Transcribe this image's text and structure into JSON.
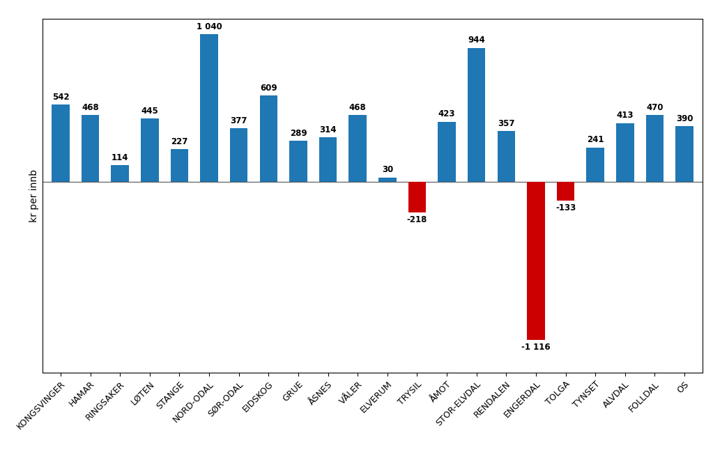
{
  "chart_data": {
    "type": "bar",
    "categories": [
      "KONGSVINGER",
      "HAMAR",
      "RINGSAKER",
      "LØTEN",
      "STANGE",
      "NORD-ODAL",
      "SØR-ODAL",
      "EIDSKOG",
      "GRUE",
      "ÅSNES",
      "VÅLER",
      "ELVERUM",
      "TRYSIL",
      "ÅMOT",
      "STOR-ELVDAL",
      "RENDALEN",
      "ENGERDAL",
      "TOLGA",
      "TYNSET",
      "ALVDAL",
      "FOLLDAL",
      "OS"
    ],
    "values": [
      542,
      468,
      114,
      445,
      227,
      1040,
      377,
      609,
      289,
      314,
      468,
      30,
      -218,
      423,
      944,
      357,
      -1116,
      -133,
      241,
      413,
      470,
      390
    ],
    "value_labels": [
      "542",
      "468",
      "114",
      "445",
      "227",
      "1 040",
      "377",
      "609",
      "289",
      "314",
      "468",
      "30",
      "-218",
      "423",
      "944",
      "357",
      "-1 116",
      "-133",
      "241",
      "413",
      "470",
      "390"
    ],
    "colors": [
      "#1f77b4",
      "#1f77b4",
      "#1f77b4",
      "#1f77b4",
      "#1f77b4",
      "#1f77b4",
      "#1f77b4",
      "#1f77b4",
      "#1f77b4",
      "#1f77b4",
      "#1f77b4",
      "#1f77b4",
      "#cc0000",
      "#1f77b4",
      "#1f77b4",
      "#1f77b4",
      "#cc0000",
      "#cc0000",
      "#1f77b4",
      "#1f77b4",
      "#1f77b4",
      "#1f77b4"
    ],
    "ylabel": "kr per innb",
    "ylim": [
      -1350,
      1150
    ],
    "data_labels": true,
    "tick_labels": "x",
    "grid": false
  }
}
